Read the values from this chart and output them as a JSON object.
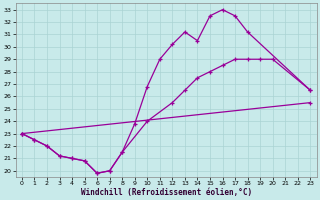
{
  "xlabel": "Windchill (Refroidissement éolien,°C)",
  "xlim": [
    -0.5,
    23.5
  ],
  "ylim": [
    19.5,
    33.5
  ],
  "xticks": [
    0,
    1,
    2,
    3,
    4,
    5,
    6,
    7,
    8,
    9,
    10,
    11,
    12,
    13,
    14,
    15,
    16,
    17,
    18,
    19,
    20,
    21,
    22,
    23
  ],
  "yticks": [
    20,
    21,
    22,
    23,
    24,
    25,
    26,
    27,
    28,
    29,
    30,
    31,
    32,
    33
  ],
  "bg_color": "#c8eaea",
  "line_color": "#990099",
  "grid_color": "#aad4d4",
  "curve1_x": [
    0,
    1,
    2,
    3,
    4,
    5,
    6,
    7,
    8,
    9,
    10,
    11,
    12,
    13,
    14,
    15,
    16,
    17,
    18,
    23
  ],
  "curve1_y": [
    23.0,
    22.5,
    22.0,
    21.2,
    21.0,
    20.8,
    19.8,
    20.0,
    21.5,
    23.8,
    26.8,
    29.0,
    30.2,
    31.2,
    30.5,
    32.5,
    33.0,
    32.5,
    31.2,
    26.5
  ],
  "curve2_x": [
    0,
    1,
    2,
    3,
    4,
    5,
    6,
    7,
    8,
    10,
    12,
    13,
    14,
    15,
    16,
    17,
    18,
    19,
    20,
    23
  ],
  "curve2_y": [
    23.0,
    22.5,
    22.0,
    21.2,
    21.0,
    20.8,
    19.8,
    20.0,
    21.5,
    24.0,
    25.5,
    26.5,
    27.5,
    28.0,
    28.5,
    29.0,
    29.0,
    29.0,
    29.0,
    26.5
  ],
  "curve3_x": [
    0,
    23
  ],
  "curve3_y": [
    23.0,
    25.5
  ]
}
